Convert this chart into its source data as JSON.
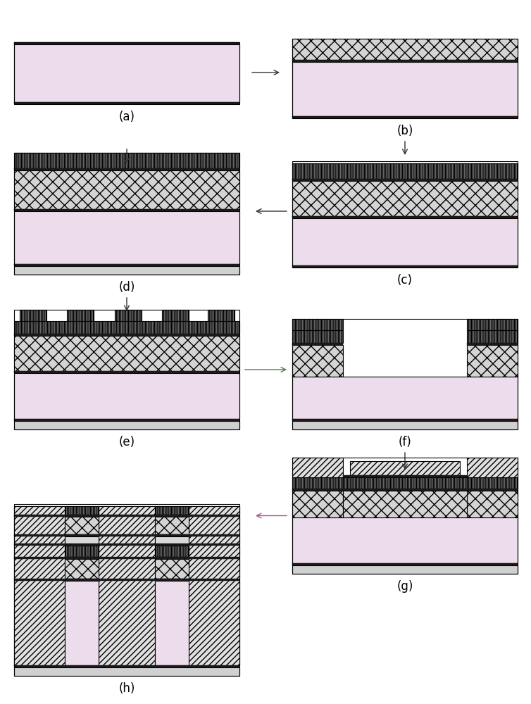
{
  "bg_color": "#ffffff",
  "pink_speckle": "#ecdcec",
  "dark_line": "#1a1a1a",
  "cross_dot_fc": "#d0d0d0",
  "fine_vhatch_fc": "#e0e0e0",
  "diag_hatch_fc": "#e0e0e0",
  "horiz_hatch_fc": "#d8d8d8",
  "arrow_black": "#333333",
  "arrow_green": "#557755",
  "arrow_pink": "#aa5588",
  "label_fontsize": 12,
  "panel_labels": [
    "(a)",
    "(b)",
    "(c)",
    "(d)",
    "(e)",
    "(f)",
    "(g)",
    "(h)"
  ]
}
